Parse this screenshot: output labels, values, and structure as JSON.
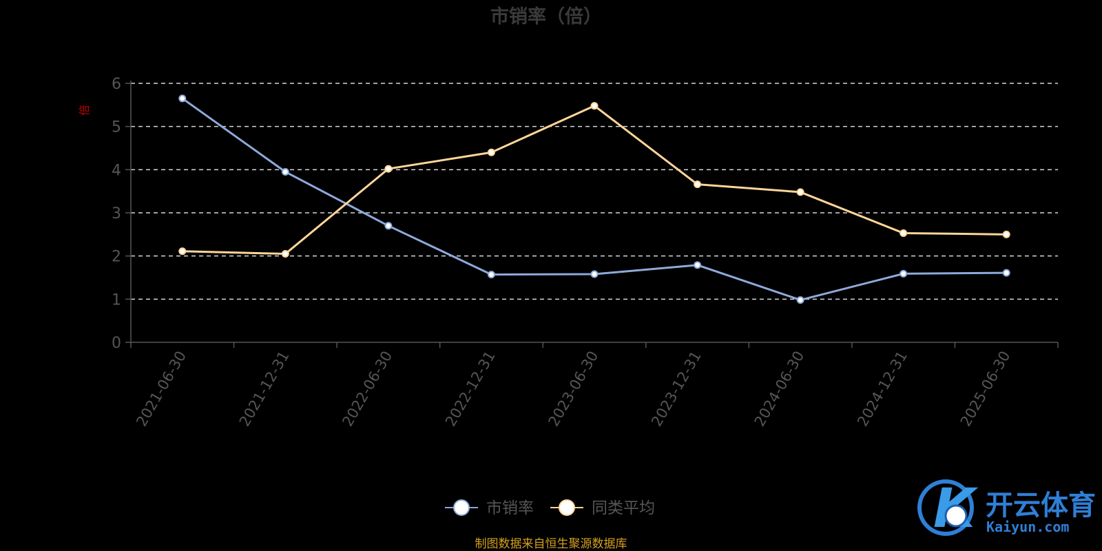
{
  "chart_data": {
    "type": "line",
    "title": "市销率（倍）",
    "ylabel": "倍",
    "xlabel": "",
    "ylim": [
      0,
      6
    ],
    "yticks": [
      0,
      1,
      2,
      3,
      4,
      5,
      6
    ],
    "grid": true,
    "legend_position": "bottom",
    "categories": [
      "2021-06-30",
      "2021-12-31",
      "2022-06-30",
      "2022-12-31",
      "2023-06-30",
      "2023-12-31",
      "2024-06-30",
      "2024-12-31",
      "2025-06-30"
    ],
    "series": [
      {
        "name": "市销率",
        "color": "#8eaadb",
        "values": [
          5.65,
          3.95,
          2.7,
          1.57,
          1.58,
          1.79,
          0.98,
          1.59,
          1.61
        ]
      },
      {
        "name": "同类平均",
        "color": "#ffd699",
        "values": [
          2.11,
          2.05,
          4.02,
          4.4,
          5.48,
          3.66,
          3.48,
          2.53,
          2.5
        ]
      }
    ]
  },
  "source_note": "制图数据来自恒生聚源数据库",
  "watermark": {
    "brand_cn": "开云体育",
    "brand_en": "Kaiyun.com",
    "logo_letter": "K"
  }
}
